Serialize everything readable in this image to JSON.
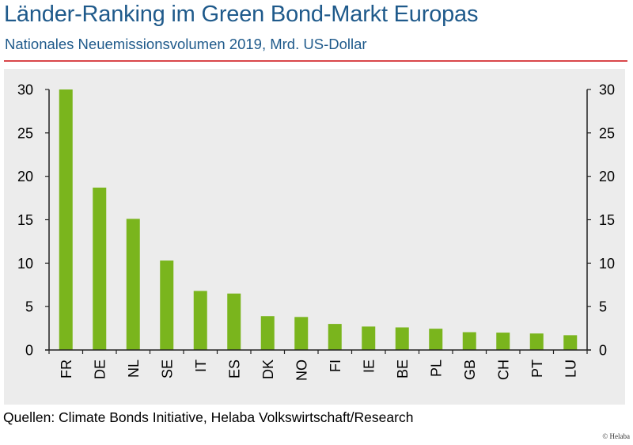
{
  "header": {
    "title": "Länder-Ranking im Green Bond-Markt Europas",
    "subtitle": "Nationales Neuemissionsvolumen 2019, Mrd. US-Dollar"
  },
  "footer": {
    "source": "Quellen: Climate Bonds Initiative, Helaba Volkswirtschaft/Research",
    "copyright": "© Helaba"
  },
  "colors": {
    "title": "#1f5a8b",
    "rule": "#d9474a",
    "bar": "#7ab51d",
    "panel": "#ececec",
    "axis": "#222222"
  },
  "chart_data": {
    "type": "bar",
    "title": "Länder-Ranking im Green Bond-Markt Europas",
    "subtitle": "Nationales Neuemissionsvolumen 2019, Mrd. US-Dollar",
    "xlabel": "",
    "ylabel": "",
    "categories": [
      "FR",
      "DE",
      "NL",
      "SE",
      "IT",
      "ES",
      "DK",
      "NO",
      "FI",
      "IE",
      "BE",
      "PL",
      "GB",
      "CH",
      "PT",
      "LU"
    ],
    "values": [
      30.0,
      18.7,
      15.1,
      10.3,
      6.8,
      6.5,
      3.9,
      3.8,
      3.0,
      2.7,
      2.6,
      2.45,
      2.05,
      2.0,
      1.9,
      1.7
    ],
    "ylim": [
      0,
      30
    ],
    "yticks": [
      0,
      5,
      10,
      15,
      20,
      25,
      30
    ],
    "secondary_axis": true,
    "grid": false,
    "legend": "none"
  }
}
